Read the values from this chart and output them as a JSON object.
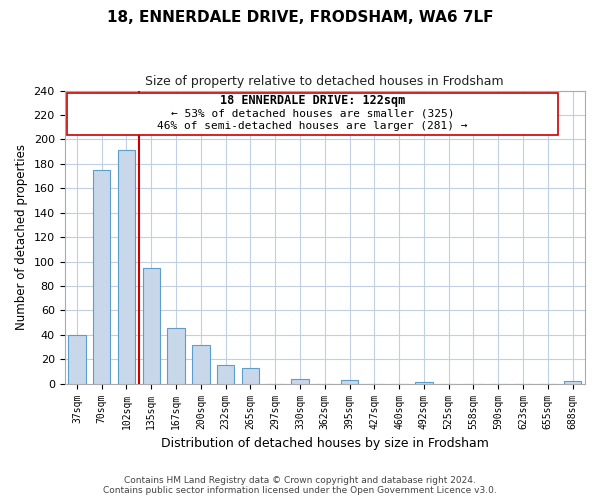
{
  "title": "18, ENNERDALE DRIVE, FRODSHAM, WA6 7LF",
  "subtitle": "Size of property relative to detached houses in Frodsham",
  "xlabel": "Distribution of detached houses by size in Frodsham",
  "ylabel": "Number of detached properties",
  "bin_labels": [
    "37sqm",
    "70sqm",
    "102sqm",
    "135sqm",
    "167sqm",
    "200sqm",
    "232sqm",
    "265sqm",
    "297sqm",
    "330sqm",
    "362sqm",
    "395sqm",
    "427sqm",
    "460sqm",
    "492sqm",
    "525sqm",
    "558sqm",
    "590sqm",
    "623sqm",
    "655sqm",
    "688sqm"
  ],
  "bar_heights": [
    40,
    175,
    191,
    95,
    46,
    32,
    15,
    13,
    0,
    4,
    0,
    3,
    0,
    0,
    1,
    0,
    0,
    0,
    0,
    0,
    2
  ],
  "bar_color": "#c8d8ea",
  "bar_edge_color": "#5b9ec9",
  "property_line_x": 2.5,
  "property_line_color": "#cc0000",
  "annotation_line1": "18 ENNERDALE DRIVE: 122sqm",
  "annotation_line2": "← 53% of detached houses are smaller (325)",
  "annotation_line3": "46% of semi-detached houses are larger (281) →",
  "annotation_box_color": "#cc0000",
  "ylim": [
    0,
    240
  ],
  "yticks": [
    0,
    20,
    40,
    60,
    80,
    100,
    120,
    140,
    160,
    180,
    200,
    220,
    240
  ],
  "footnote1": "Contains HM Land Registry data © Crown copyright and database right 2024.",
  "footnote2": "Contains public sector information licensed under the Open Government Licence v3.0.",
  "bg_color": "#ffffff",
  "grid_color": "#c0d0e0"
}
